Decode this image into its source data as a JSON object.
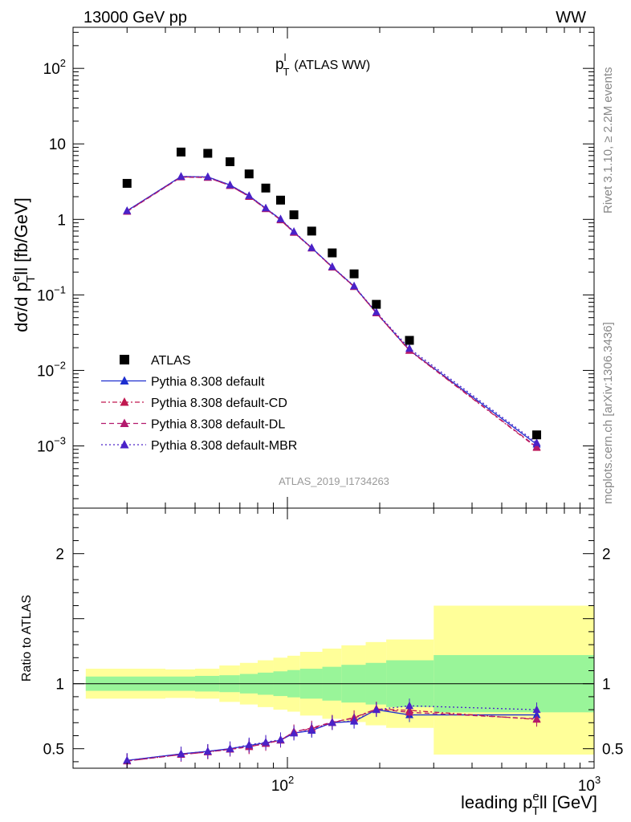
{
  "header": {
    "process": "13000 GeV pp",
    "channel": "WW",
    "side_label_rivet": "Rivet 3.1.10, ≥ 2.2M events",
    "side_label_mcplots": "mcplots.cern.ch [arXiv:1306.3436]",
    "analysis_id": "ATLAS_2019_I1734263"
  },
  "chart_data": [
    {
      "type": "line",
      "panel": "main",
      "title_main": "p",
      "title_sup": "l",
      "title_sub": "T",
      "title_rest": "(ATLAS WW)",
      "ylabel": {
        "pre": "dσ/d p",
        "sup": "e",
        "sub": "T",
        "rest": "ll [fb/GeV]"
      },
      "xscale": "log",
      "yscale": "log",
      "xlim": [
        20,
        1000
      ],
      "ylim": [
        0.00015,
        350
      ],
      "yticks": [
        {
          "base": "10",
          "exp": "2",
          "value": 100
        },
        {
          "base": "10",
          "exp": "",
          "value": 10
        },
        {
          "base": "1",
          "exp": "",
          "value": 1
        },
        {
          "base": "10",
          "exp": "−1",
          "value": 0.1
        },
        {
          "base": "10",
          "exp": "−2",
          "value": 0.01
        },
        {
          "base": "10",
          "exp": "−3",
          "value": 0.001
        }
      ],
      "x": [
        30,
        45,
        55,
        65,
        75,
        85,
        95,
        105,
        120,
        140,
        165,
        195,
        250,
        650
      ],
      "data": {
        "name": "ATLAS",
        "values": [
          3.0,
          7.8,
          7.5,
          5.8,
          4.0,
          2.6,
          1.8,
          1.15,
          0.7,
          0.36,
          0.19,
          0.075,
          0.025,
          0.0014
        ]
      },
      "series": [
        {
          "name": "Pythia 8.308 default",
          "color": "#1e2fcf",
          "dash": "solid",
          "values": [
            1.3,
            3.7,
            3.65,
            2.85,
            2.05,
            1.4,
            1.0,
            0.68,
            0.42,
            0.235,
            0.13,
            0.058,
            0.0185,
            0.00105
          ]
        },
        {
          "name": "Pythia 8.308 default-CD",
          "color": "#c0174f",
          "dash": "dashdot",
          "values": [
            1.28,
            3.65,
            3.6,
            2.8,
            2.0,
            1.38,
            0.98,
            0.67,
            0.415,
            0.232,
            0.128,
            0.0575,
            0.0183,
            0.00095
          ]
        },
        {
          "name": "Pythia 8.308 default-DL",
          "color": "#b31a6e",
          "dash": "dash",
          "values": [
            1.27,
            3.63,
            3.58,
            2.8,
            2.01,
            1.38,
            0.99,
            0.67,
            0.418,
            0.233,
            0.129,
            0.0576,
            0.0185,
            0.00097
          ]
        },
        {
          "name": "Pythia 8.308 default-MBR",
          "color": "#4a22c8",
          "dash": "dot",
          "values": [
            1.3,
            3.7,
            3.66,
            2.86,
            2.06,
            1.41,
            1.01,
            0.69,
            0.42,
            0.236,
            0.131,
            0.059,
            0.0195,
            0.0011
          ]
        }
      ],
      "legend_placement": "bottom-left"
    },
    {
      "type": "line",
      "panel": "ratio",
      "ylabel": "Ratio to ATLAS",
      "xlabel": {
        "pre": "leading p",
        "sup": "e",
        "sub": "T",
        "rest": "ll [GeV]"
      },
      "xscale": "log",
      "xlim": [
        20,
        1000
      ],
      "ylim": [
        0.35,
        2.35
      ],
      "ytick_labels": [
        "0.5",
        "1",
        "2"
      ],
      "ytick_values": [
        0.5,
        1,
        2
      ],
      "xtick_labels": [
        {
          "base": "10",
          "exp": "2",
          "value": 100
        },
        {
          "base": "10",
          "exp": "3",
          "value": 1000
        }
      ],
      "bin_edges": [
        22,
        40,
        50,
        60,
        70,
        80,
        90,
        100,
        110,
        130,
        150,
        180,
        210,
        300,
        1000
      ],
      "band_inner": {
        "color": "#99f599",
        "lo": [
          0.945,
          0.945,
          0.94,
          0.935,
          0.925,
          0.915,
          0.905,
          0.895,
          0.885,
          0.87,
          0.855,
          0.84,
          0.82,
          0.78
        ],
        "hi": [
          1.055,
          1.055,
          1.06,
          1.065,
          1.075,
          1.085,
          1.095,
          1.105,
          1.115,
          1.13,
          1.145,
          1.16,
          1.18,
          1.22
        ]
      },
      "band_outer": {
        "color": "#ffff99",
        "lo": [
          0.885,
          0.89,
          0.885,
          0.86,
          0.84,
          0.82,
          0.8,
          0.785,
          0.755,
          0.73,
          0.705,
          0.68,
          0.66,
          0.455
        ],
        "hi": [
          1.115,
          1.11,
          1.115,
          1.14,
          1.16,
          1.18,
          1.2,
          1.215,
          1.245,
          1.27,
          1.295,
          1.32,
          1.34,
          1.6
        ]
      },
      "x": [
        30,
        45,
        55,
        65,
        75,
        85,
        95,
        105,
        120,
        140,
        165,
        195,
        250,
        650
      ],
      "series": [
        {
          "name": "Pythia 8.308 default",
          "color": "#1e2fcf",
          "dash": "solid",
          "values": [
            0.41,
            0.46,
            0.48,
            0.5,
            0.525,
            0.545,
            0.565,
            0.62,
            0.64,
            0.7,
            0.71,
            0.8,
            0.76,
            0.76
          ]
        },
        {
          "name": "Pythia 8.308 default-CD",
          "color": "#c0174f",
          "dash": "dashdot",
          "values": [
            0.405,
            0.455,
            0.475,
            0.495,
            0.515,
            0.54,
            0.565,
            0.63,
            0.655,
            0.7,
            0.74,
            0.805,
            0.795,
            0.725
          ]
        },
        {
          "name": "Pythia 8.308 default-DL",
          "color": "#b31a6e",
          "dash": "dash",
          "values": [
            0.405,
            0.455,
            0.475,
            0.495,
            0.515,
            0.54,
            0.565,
            0.63,
            0.66,
            0.705,
            0.735,
            0.805,
            0.78,
            0.73
          ]
        },
        {
          "name": "Pythia 8.308 default-MBR",
          "color": "#4a22c8",
          "dash": "dot",
          "values": [
            0.41,
            0.46,
            0.48,
            0.5,
            0.53,
            0.55,
            0.57,
            0.62,
            0.645,
            0.7,
            0.715,
            0.8,
            0.83,
            0.8
          ]
        }
      ]
    }
  ]
}
